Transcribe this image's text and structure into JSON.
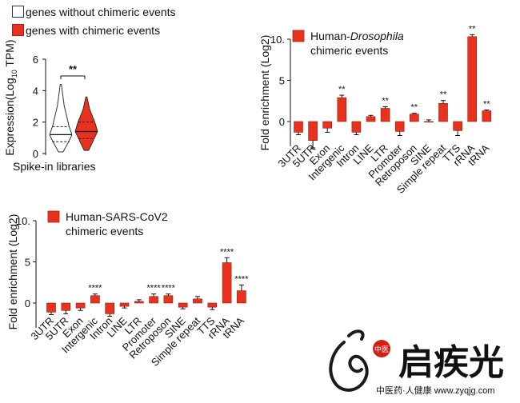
{
  "legend": {
    "items": [
      {
        "label": "genes without chimeric events",
        "color": "#ffffff"
      },
      {
        "label": "genes with chimeric events",
        "color": "#e8321e"
      }
    ]
  },
  "chart_data": [
    {
      "type": "violin",
      "ylabel_main": "Expression(Log",
      "ylabel_sub": "10",
      "ylabel_tail": " TPM)",
      "xlabel": "Spike-in libraries",
      "ylim": [
        0,
        6
      ],
      "yticks": [
        "0",
        "2",
        "4",
        "6"
      ],
      "significance": "**",
      "series": [
        {
          "name": "genes without chimeric events",
          "color": "#ffffff",
          "min": 0.1,
          "q1": 0.75,
          "median": 1.2,
          "q3": 1.7,
          "max": 4.4
        },
        {
          "name": "genes with chimeric events",
          "color": "#e8321e",
          "min": 0.2,
          "q1": 0.95,
          "median": 1.4,
          "q3": 2.0,
          "max": 3.6
        }
      ]
    },
    {
      "type": "bar",
      "title_line1_prefix": "Human-",
      "title_line1_italic": "Drosophila",
      "title_line2": "chimeric events",
      "ylabel": "Fold enrichment (Log2)",
      "ylim": [
        -3,
        10
      ],
      "yticks": [
        "0",
        "5",
        "10."
      ],
      "categories": [
        "3UTR",
        "5UTR",
        "Exon",
        "Intergenic",
        "Intron",
        "LINE",
        "LTR",
        "Promoter",
        "Retroposon",
        "SINE",
        "Simple repeat",
        "TTS",
        "rRNA",
        "tRNA"
      ],
      "values": [
        -1.3,
        -2.3,
        -0.8,
        2.9,
        -1.3,
        0.6,
        1.6,
        -1.2,
        0.9,
        0.0,
        2.2,
        -1.1,
        10.3,
        1.3
      ],
      "errors": [
        0.3,
        0.9,
        0.5,
        0.3,
        0.3,
        0.15,
        0.2,
        0.5,
        0.1,
        0.2,
        0.35,
        0.6,
        0.25,
        0.1
      ],
      "significance": [
        "",
        "",
        "",
        "**",
        "",
        "",
        "**",
        "",
        "**",
        "",
        "**",
        "",
        "**",
        "**"
      ],
      "bar_color": "#e8321e"
    },
    {
      "type": "bar",
      "title_line1": "Human-SARS-CoV2",
      "title_line2": "chimeric events",
      "ylabel": "Fold enrichment (Log2)",
      "ylim": [
        -3,
        10
      ],
      "yticks": [
        "0",
        "5",
        "10."
      ],
      "categories": [
        "3UTR",
        "5UTR",
        "Exon",
        "Intergenic",
        "Intron",
        "LINE",
        "LTR",
        "Promoter",
        "Retroposon",
        "SINE",
        "Simple repeat",
        "TTS",
        "rRNA",
        "tRNA"
      ],
      "values": [
        -1.1,
        -0.9,
        -0.6,
        0.9,
        -1.3,
        -0.4,
        0.2,
        0.8,
        0.9,
        -0.5,
        0.5,
        -0.5,
        4.9,
        1.5
      ],
      "errors": [
        0.3,
        0.4,
        0.3,
        0.2,
        0.3,
        0.2,
        0.2,
        0.3,
        0.2,
        0.2,
        0.3,
        0.3,
        0.6,
        0.7
      ],
      "significance": [
        "",
        "",
        "",
        "****",
        "",
        "",
        "",
        "****",
        "****",
        "",
        "",
        "",
        "****",
        "****"
      ],
      "bar_color": "#e8321e"
    }
  ],
  "watermark": {
    "brand_cn": "启疾光",
    "badge": "中医",
    "tagline": "中医药·人健康 www.zyqjg.com"
  }
}
